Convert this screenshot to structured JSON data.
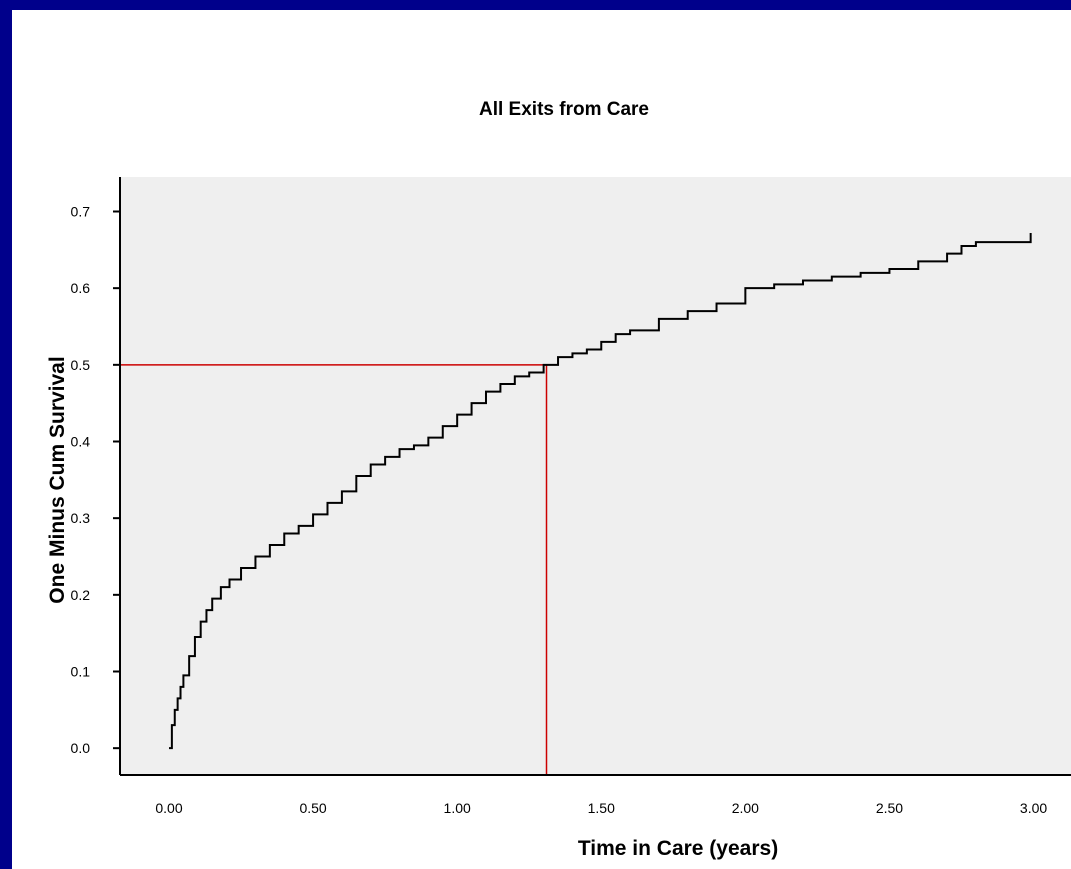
{
  "chart_data": {
    "type": "line",
    "title": "All Exits from Care",
    "xlabel": "Time in Care (years)",
    "ylabel": "One Minus Cum Survival",
    "xlim": [
      -0.17,
      3.13
    ],
    "ylim": [
      -0.035,
      0.745
    ],
    "x_ticks": [
      "0.00",
      "0.50",
      "1.00",
      "1.50",
      "2.00",
      "2.50",
      "3.00"
    ],
    "y_ticks": [
      "0.0",
      "0.1",
      "0.2",
      "0.3",
      "0.4",
      "0.5",
      "0.6",
      "0.7"
    ],
    "grid": false,
    "background": "#efefef",
    "series": [
      {
        "color": "#000000",
        "step": true,
        "x": [
          0.0,
          0.01,
          0.02,
          0.03,
          0.04,
          0.05,
          0.07,
          0.09,
          0.11,
          0.13,
          0.15,
          0.18,
          0.21,
          0.25,
          0.3,
          0.35,
          0.4,
          0.45,
          0.5,
          0.55,
          0.6,
          0.65,
          0.7,
          0.75,
          0.8,
          0.85,
          0.9,
          0.95,
          1.0,
          1.05,
          1.1,
          1.15,
          1.2,
          1.25,
          1.3,
          1.35,
          1.4,
          1.45,
          1.5,
          1.55,
          1.6,
          1.7,
          1.8,
          1.9,
          2.0,
          2.1,
          2.2,
          2.3,
          2.4,
          2.5,
          2.6,
          2.7,
          2.75,
          2.8,
          2.9,
          2.99,
          2.99
        ],
        "values": [
          0.0,
          0.03,
          0.05,
          0.065,
          0.08,
          0.095,
          0.12,
          0.145,
          0.165,
          0.18,
          0.195,
          0.21,
          0.22,
          0.235,
          0.25,
          0.265,
          0.28,
          0.29,
          0.305,
          0.32,
          0.335,
          0.355,
          0.37,
          0.38,
          0.39,
          0.395,
          0.405,
          0.42,
          0.435,
          0.45,
          0.465,
          0.475,
          0.485,
          0.49,
          0.5,
          0.51,
          0.515,
          0.52,
          0.53,
          0.54,
          0.545,
          0.56,
          0.57,
          0.58,
          0.6,
          0.605,
          0.61,
          0.615,
          0.62,
          0.625,
          0.635,
          0.645,
          0.655,
          0.66,
          0.66,
          0.66,
          0.672
        ]
      }
    ],
    "reference_lines": [
      {
        "color": "#cc0000",
        "x": 1.31,
        "y": 0.5
      }
    ]
  }
}
